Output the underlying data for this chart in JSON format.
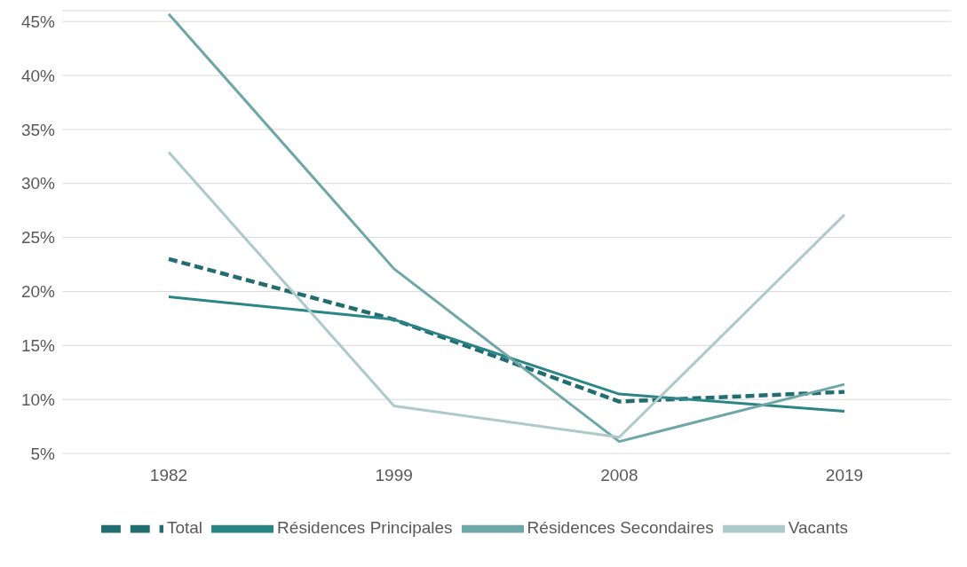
{
  "chart_data": {
    "type": "line",
    "categories": [
      "1982",
      "1999",
      "2008",
      "2019"
    ],
    "series": [
      {
        "name": "Total",
        "color": "#216d6f",
        "line_style": "dashed",
        "values": [
          23.0,
          17.4,
          9.8,
          10.7
        ]
      },
      {
        "name": "Résidences Principales",
        "color": "#2b8587",
        "line_style": "solid",
        "values": [
          19.5,
          17.4,
          10.5,
          8.9
        ]
      },
      {
        "name": "Résidences Secondaires",
        "color": "#6fa6a7",
        "line_style": "solid",
        "values": [
          45.7,
          22.1,
          6.1,
          11.4
        ]
      },
      {
        "name": "Vacants",
        "color": "#adc9ca",
        "line_style": "solid",
        "values": [
          32.9,
          9.4,
          6.5,
          27.1
        ]
      }
    ],
    "ylim": [
      5,
      46
    ],
    "yticks": [
      {
        "value": 5,
        "label": "5%"
      },
      {
        "value": 10,
        "label": "10%"
      },
      {
        "value": 15,
        "label": "15%"
      },
      {
        "value": 20,
        "label": "20%"
      },
      {
        "value": 25,
        "label": "25%"
      },
      {
        "value": 30,
        "label": "30%"
      },
      {
        "value": 35,
        "label": "35%"
      },
      {
        "value": 40,
        "label": "40%"
      },
      {
        "value": 45,
        "label": "45%"
      }
    ],
    "grid": "y",
    "legend": "bottom",
    "marker": "none"
  }
}
